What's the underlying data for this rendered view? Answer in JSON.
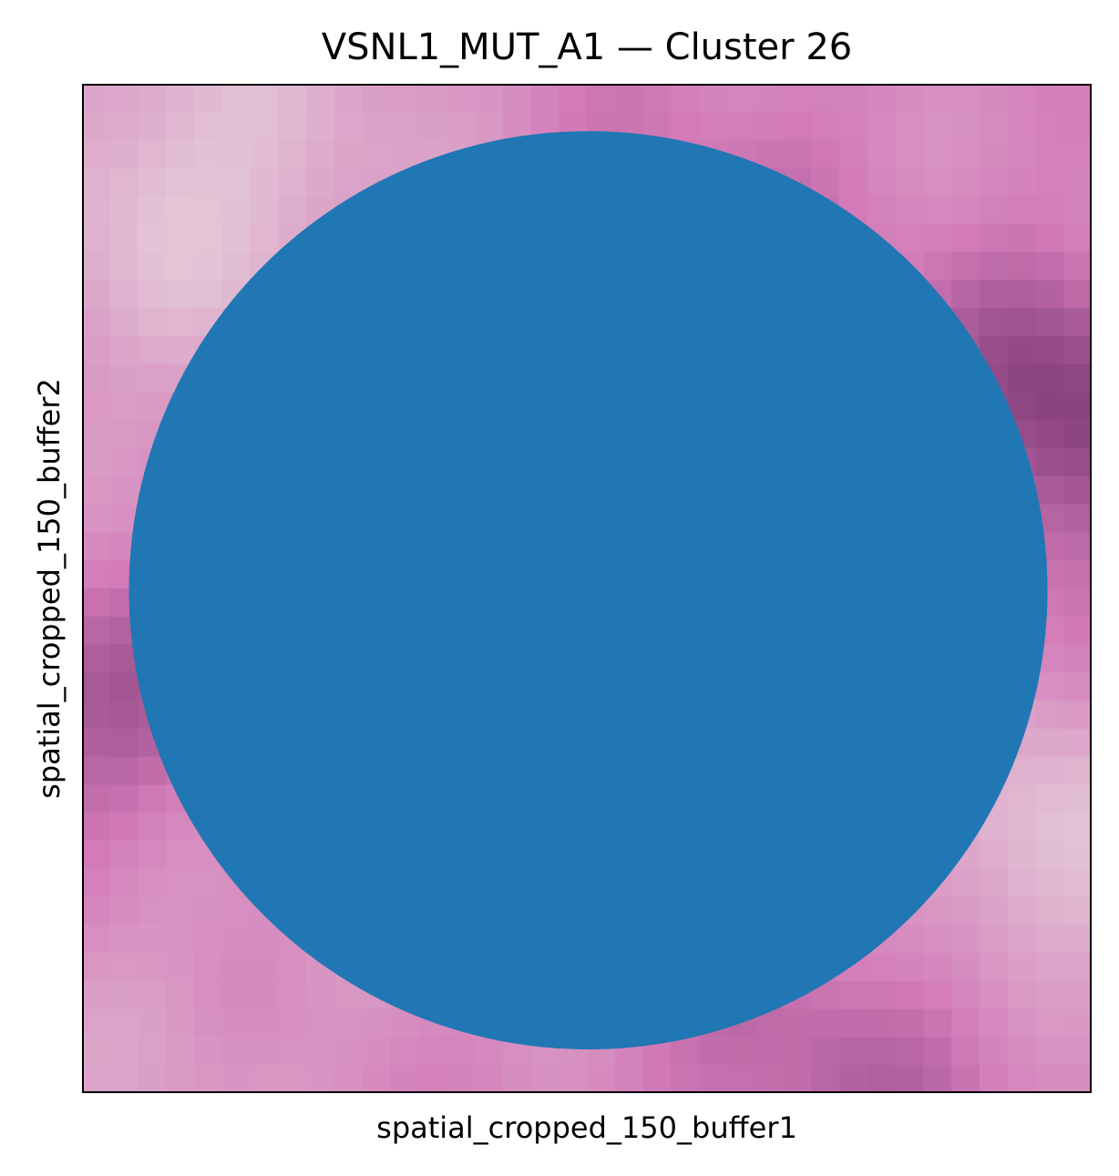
{
  "chart_data": {
    "type": "scatter",
    "title": "VSNL1_MUT_A1 — Cluster 26",
    "xlabel": "spatial_cropped_150_buffer1",
    "ylabel": "spatial_cropped_150_buffer2",
    "x_ticks": [],
    "y_ticks": [],
    "grid": false,
    "legend": "none",
    "background": "tissue-image",
    "series": [
      {
        "points": [
          {
            "x": 0.5,
            "y": 0.5
          }
        ],
        "color": "#2077b4"
      }
    ],
    "xlim": [
      0,
      1
    ],
    "ylim": [
      0,
      1
    ]
  },
  "colors": {
    "marker": "#2077b4",
    "tissue_light": "#e3c5d6",
    "tissue_mid": "#d27ab8",
    "tissue_dark": "#86407c",
    "frame": "#000000"
  }
}
